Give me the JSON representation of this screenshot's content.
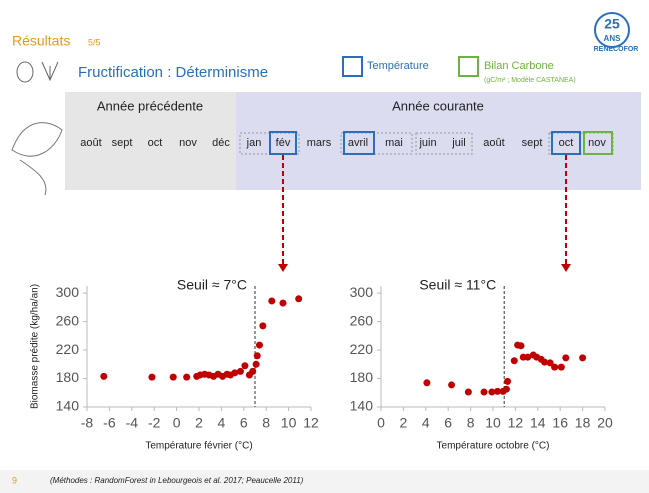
{
  "header": {
    "section": "Résultats",
    "step": "5/5",
    "title": "Fructification : Déterminisme",
    "legend": {
      "temperature": "Température",
      "carbon": "Bilan Carbone",
      "carbon_note": "(gC/m² ; Modèle CASTANEA)"
    },
    "logo": {
      "number": "25",
      "word": "ANS",
      "org": "RENECOFOR"
    }
  },
  "calendar": {
    "previous_label": "Année précédente",
    "current_label": "Année courante",
    "previous": [
      "août",
      "sept",
      "oct",
      "nov",
      "déc"
    ],
    "current": [
      "jan",
      "fév",
      "mars",
      "avril",
      "mai",
      "juin",
      "juil",
      "août",
      "sept",
      "oct",
      "nov"
    ]
  },
  "footer": {
    "page": "9",
    "note": "(Méthodes : RandomForest in Lebourgeois et al. 2017; Peaucelle 2011)"
  },
  "chart_data": [
    {
      "type": "scatter",
      "xlabel": "Température février (°C)",
      "ylabel": "Biomasse prédite (kg/ha/an)",
      "annotation": "Seuil ≈ 7°C",
      "threshold": 7,
      "color": "#c00000",
      "xlim": [
        -8,
        12
      ],
      "xticks": [
        -8,
        -6,
        -4,
        -2,
        0,
        2,
        4,
        6,
        8,
        10,
        12
      ],
      "ylim": [
        140,
        310
      ],
      "yticks": [
        140,
        180,
        220,
        260,
        300
      ],
      "x": [
        -6.5,
        -2.2,
        -0.3,
        0.9,
        1.8,
        2.1,
        2.5,
        2.9,
        3.3,
        3.7,
        4.1,
        4.5,
        4.8,
        5.2,
        5.7,
        6.1,
        6.5,
        6.8,
        7.1,
        7.2,
        7.4,
        7.7,
        8.5,
        9.5,
        10.9
      ],
      "values": [
        183,
        182,
        182,
        182,
        183,
        185,
        186,
        185,
        183,
        186,
        183,
        186,
        185,
        188,
        190,
        198,
        185,
        190,
        200,
        212,
        227,
        254,
        289,
        286,
        292
      ]
    },
    {
      "type": "scatter",
      "xlabel": "Température octobre (°C)",
      "annotation": "Seuil ≈ 11°C",
      "threshold": 11,
      "color": "#c00000",
      "xlim": [
        0,
        20
      ],
      "xticks": [
        0,
        2,
        4,
        6,
        8,
        10,
        12,
        14,
        16,
        18,
        20
      ],
      "ylim": [
        140,
        310
      ],
      "yticks": [
        140,
        180,
        220,
        260,
        300
      ],
      "x": [
        4.1,
        6.3,
        7.8,
        9.2,
        9.9,
        10.4,
        10.9,
        11.2,
        11.3,
        11.9,
        12.2,
        12.5,
        12.7,
        13.1,
        13.6,
        13.9,
        14.3,
        14.6,
        15.1,
        15.5,
        16.1,
        16.5,
        18.0
      ],
      "values": [
        174,
        171,
        161,
        161,
        161,
        162,
        162,
        165,
        176,
        205,
        227,
        226,
        210,
        210,
        213,
        210,
        207,
        203,
        202,
        196,
        196,
        209,
        209
      ]
    }
  ]
}
